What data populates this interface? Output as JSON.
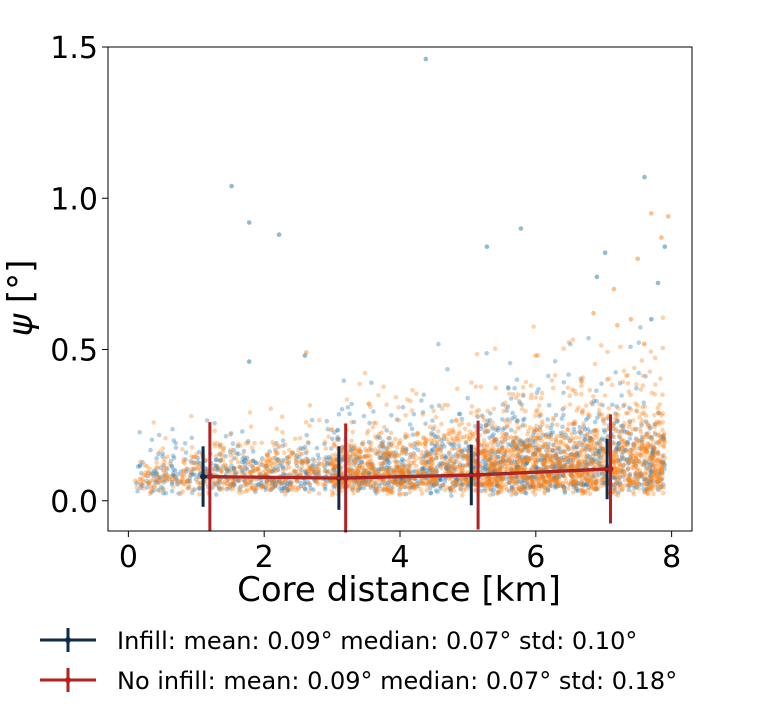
{
  "chart_data": {
    "type": "scatter",
    "xlabel": "Core distance [km]",
    "ylabel_symbol": "ψ",
    "ylabel_unit": " [°]",
    "xlim": [
      -0.3,
      8.3
    ],
    "ylim": [
      -0.1,
      1.5
    ],
    "x_ticks": [
      0,
      2,
      4,
      6,
      8
    ],
    "x_tick_labels": [
      "0",
      "2",
      "4",
      "6",
      "8"
    ],
    "y_ticks": [
      0.0,
      0.5,
      1.0,
      1.5
    ],
    "y_tick_labels": [
      "0.0",
      "0.5",
      "1.0",
      "1.5"
    ],
    "grid": false,
    "scatter_series": [
      {
        "name": "Infill (scatter)",
        "color": "#1f77b4",
        "opacity": 0.35,
        "approx_count": 1600
      },
      {
        "name": "No infill (scatter)",
        "color": "#ff7f0e",
        "opacity": 0.35,
        "approx_count": 2600
      }
    ],
    "outliers": {
      "Infill (scatter)": [
        [
          4.38,
          1.46
        ],
        [
          1.52,
          1.04
        ],
        [
          1.78,
          0.92
        ],
        [
          2.22,
          0.88
        ],
        [
          5.78,
          0.9
        ],
        [
          5.28,
          0.84
        ],
        [
          7.6,
          1.07
        ],
        [
          7.9,
          0.84
        ],
        [
          7.8,
          0.72
        ],
        [
          6.9,
          0.74
        ],
        [
          7.02,
          0.82
        ],
        [
          1.78,
          0.46
        ],
        [
          2.6,
          0.48
        ],
        [
          7.7,
          0.6
        ]
      ],
      "No infill (scatter)": [
        [
          7.5,
          0.8
        ],
        [
          7.7,
          0.95
        ],
        [
          7.95,
          0.94
        ],
        [
          7.85,
          0.87
        ],
        [
          7.15,
          0.7
        ],
        [
          6.85,
          0.62
        ],
        [
          2.62,
          0.49
        ],
        [
          7.4,
          0.6
        ],
        [
          7.2,
          0.58
        ],
        [
          6.0,
          0.48
        ]
      ]
    },
    "series": [
      {
        "name": "Infill",
        "color": "#0f2a4a",
        "x": [
          1.1,
          3.1,
          5.05,
          7.05
        ],
        "y": [
          0.08,
          0.075,
          0.085,
          0.105
        ],
        "yerr": [
          0.1,
          0.105,
          0.1,
          0.1
        ]
      },
      {
        "name": "No infill",
        "color": "#b22222",
        "x": [
          1.2,
          3.2,
          5.15,
          7.1
        ],
        "y": [
          0.08,
          0.075,
          0.085,
          0.105
        ],
        "yerr": [
          0.18,
          0.18,
          0.18,
          0.18
        ]
      }
    ],
    "legend": {
      "placement": "below",
      "entries": [
        {
          "label": "Infill: mean: 0.09° median: 0.07°  std: 0.10°",
          "color": "#0f2a4a"
        },
        {
          "label": "No infill: mean: 0.09° median: 0.07°  std: 0.18°",
          "color": "#b22222"
        }
      ]
    }
  }
}
